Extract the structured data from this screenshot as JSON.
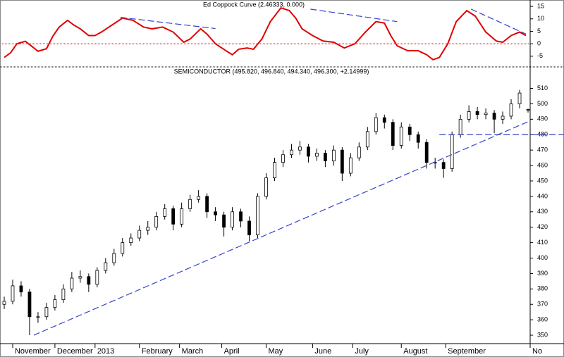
{
  "chart_data": [
    {
      "type": "line",
      "title": "Ed Coppock Curve (2.46333, 0.000)",
      "x": [
        1,
        4,
        7,
        11,
        14,
        17,
        21,
        24,
        27,
        31,
        34,
        37,
        41,
        44,
        47,
        52,
        57,
        62,
        67,
        71,
        76,
        81,
        86,
        89,
        94,
        97,
        101,
        106,
        109,
        112,
        116,
        119,
        123,
        127,
        132,
        136,
        139,
        142,
        147,
        152,
        157,
        162,
        167,
        172,
        177,
        181,
        184,
        187,
        192,
        197,
        201,
        204,
        207,
        211,
        215,
        220,
        224,
        229,
        234,
        237,
        241,
        245,
        248
      ],
      "series": [
        {
          "color": "#e00000",
          "values": [
            -5.5,
            -3.6,
            0,
            1,
            -1,
            -3,
            -2,
            3,
            6.7,
            9.4,
            7.5,
            6,
            3.3,
            3.3,
            4.7,
            7.5,
            10.3,
            9.4,
            6.7,
            6,
            6.7,
            4.7,
            0.6,
            1.9,
            6,
            3.9,
            0,
            -2.8,
            -4.4,
            -2.2,
            -1.7,
            -2.2,
            1.9,
            8.9,
            14.4,
            13.3,
            10.3,
            6,
            3.3,
            1.1,
            0.6,
            -1.7,
            0,
            4.7,
            8.9,
            8.3,
            3.3,
            -0.8,
            -2.8,
            -2.8,
            -4.4,
            -6.4,
            -5.5,
            0,
            8.9,
            13.3,
            11.1,
            4.7,
            1.1,
            0.6,
            3.3,
            4.7,
            3.3
          ]
        }
      ],
      "hline": 0,
      "hline_color": "#e00000",
      "trend_lines": [
        {
          "x": [
            56,
            101
          ],
          "y": [
            10.6,
            6.1
          ]
        },
        {
          "x": [
            146,
            187
          ],
          "y": [
            13.9,
            8.9
          ]
        },
        {
          "x": [
            222,
            248
          ],
          "y": [
            13.9,
            3.9
          ]
        }
      ],
      "trend_color": "#3344cc",
      "xlim": [
        0,
        250
      ],
      "ylim": [
        -9,
        17
      ],
      "yticks": [
        -5,
        0,
        5,
        10,
        15
      ]
    },
    {
      "type": "candlestick",
      "title": "SEMICONDUCTOR (495.820, 496.840, 494.340, 496.300, +2.14999)",
      "x": [
        1,
        5,
        9,
        13,
        17,
        21,
        25,
        29,
        33,
        37,
        41,
        45,
        49,
        53,
        57,
        61,
        65,
        69,
        73,
        77,
        81,
        85,
        89,
        93,
        97,
        101,
        105,
        109,
        113,
        117,
        121,
        125,
        129,
        133,
        137,
        141,
        145,
        149,
        153,
        157,
        161,
        165,
        169,
        173,
        177,
        181,
        185,
        189,
        193,
        197,
        201,
        205,
        209,
        213,
        217,
        221,
        225,
        229,
        233,
        237,
        241,
        245,
        249
      ],
      "open": [
        370,
        372,
        382,
        378,
        362,
        362,
        368,
        373,
        380,
        387,
        388,
        383,
        392,
        397,
        403,
        410,
        413,
        418,
        420,
        427,
        432,
        422,
        432,
        438,
        440,
        430,
        428,
        420,
        430,
        424,
        415,
        440,
        452,
        462,
        467,
        470,
        472,
        466,
        468,
        463,
        470,
        455,
        465,
        472,
        482,
        491,
        488,
        473,
        485,
        480,
        475,
        462,
        462,
        458,
        480,
        490,
        495,
        493,
        494,
        490,
        492,
        500,
        495.82
      ],
      "high": [
        375,
        386,
        385,
        380,
        365,
        371,
        376,
        383,
        391,
        392,
        390,
        394,
        400,
        406,
        413,
        416,
        421,
        424,
        430,
        435,
        434,
        436,
        441,
        444,
        442,
        433,
        430,
        433,
        432,
        427,
        442,
        455,
        465,
        470,
        474,
        476,
        474,
        471,
        470,
        473,
        472,
        468,
        475,
        485,
        494,
        493,
        490,
        488,
        487,
        482,
        477,
        465,
        464,
        482,
        493,
        499,
        498,
        497,
        496,
        495,
        503,
        509,
        496.84
      ],
      "low": [
        367,
        370,
        375,
        350,
        358,
        360,
        366,
        371,
        378,
        384,
        378,
        381,
        390,
        395,
        401,
        408,
        411,
        415,
        418,
        425,
        418,
        420,
        430,
        436,
        426,
        424,
        414,
        418,
        420,
        411,
        413,
        438,
        450,
        459,
        465,
        467,
        462,
        463,
        459,
        460,
        450,
        453,
        463,
        470,
        480,
        484,
        470,
        471,
        476,
        471,
        458,
        458,
        452,
        456,
        478,
        488,
        490,
        490,
        481,
        487,
        490,
        497,
        494.34
      ],
      "close": [
        372,
        382,
        378,
        362,
        362,
        368,
        373,
        380,
        387,
        388,
        383,
        392,
        397,
        403,
        410,
        413,
        418,
        420,
        427,
        432,
        422,
        432,
        438,
        440,
        430,
        428,
        420,
        430,
        424,
        415,
        440,
        452,
        462,
        467,
        470,
        472,
        466,
        468,
        463,
        470,
        455,
        465,
        472,
        482,
        491,
        488,
        473,
        485,
        480,
        475,
        462,
        462,
        458,
        480,
        490,
        495,
        493,
        494,
        490,
        492,
        500,
        507,
        496.3
      ],
      "trend_lines": [
        {
          "x": [
            15,
            250
          ],
          "y": [
            350,
            489
          ]
        },
        {
          "x": [
            207,
            266
          ],
          "y": [
            480,
            480
          ]
        }
      ],
      "trend_color": "#3344cc",
      "xlim": [
        0,
        250
      ],
      "ylim": [
        345,
        518
      ],
      "yticks": [
        350,
        360,
        370,
        380,
        390,
        400,
        410,
        420,
        430,
        440,
        450,
        460,
        470,
        480,
        490,
        500,
        510
      ],
      "xticks": [
        {
          "value": 5,
          "label": "November"
        },
        {
          "value": 25,
          "label": "December"
        },
        {
          "value": 44,
          "label": "2013"
        },
        {
          "value": 65,
          "label": "February"
        },
        {
          "value": 84,
          "label": "March"
        },
        {
          "value": 104,
          "label": "April"
        },
        {
          "value": 125,
          "label": "May"
        },
        {
          "value": 147,
          "label": "June"
        },
        {
          "value": 166,
          "label": "July"
        },
        {
          "value": 189,
          "label": "August"
        },
        {
          "value": 210,
          "label": "September"
        },
        {
          "value": 250,
          "label": "No"
        }
      ]
    }
  ]
}
